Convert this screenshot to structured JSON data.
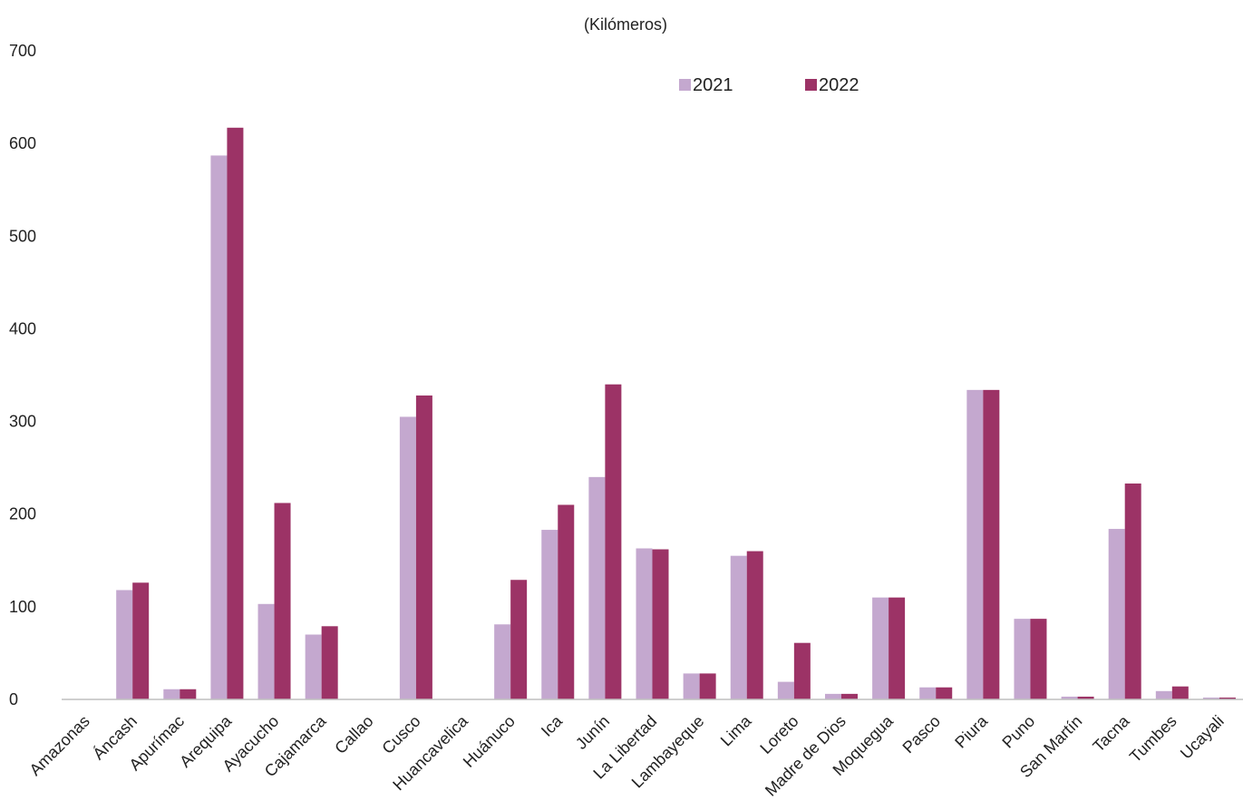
{
  "chart_data": {
    "type": "bar",
    "subtitle": "(Kilómeros)",
    "categories": [
      "Amazonas",
      "Áncash",
      "Apurímac",
      "Arequipa",
      "Ayacucho",
      "Cajamarca",
      "Callao",
      "Cusco",
      "Huancavelica",
      "Huánuco",
      "Ica",
      "Junín",
      "La Libertad",
      "Lambayeque",
      "Lima",
      "Loreto",
      "Madre de Dios",
      "Moquegua",
      "Pasco",
      "Piura",
      "Puno",
      "San Martín",
      "Tacna",
      "Tumbes",
      "Ucayali"
    ],
    "series": [
      {
        "name": "2021",
        "color": "#c4a8cf",
        "values": [
          0,
          118,
          11,
          587,
          103,
          70,
          0,
          305,
          0,
          81,
          183,
          240,
          163,
          28,
          155,
          19,
          6,
          110,
          13,
          334,
          87,
          3,
          184,
          9,
          2
        ]
      },
      {
        "name": "2022",
        "color": "#9c3366",
        "values": [
          0,
          126,
          11,
          617,
          212,
          79,
          0,
          328,
          0,
          129,
          210,
          340,
          162,
          28,
          160,
          61,
          6,
          110,
          13,
          334,
          87,
          3,
          233,
          14,
          2
        ]
      }
    ],
    "y_ticks": [
      0,
      100,
      200,
      300,
      400,
      500,
      600,
      700
    ],
    "ylim": [
      0,
      700
    ],
    "legend_position": "top-center",
    "gridlines": false
  }
}
